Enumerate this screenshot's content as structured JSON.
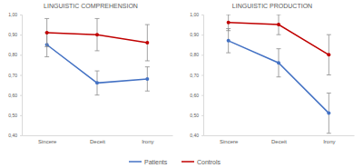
{
  "chart_data": [
    {
      "type": "line",
      "title": "LINGUISTIC COMPREHENSION",
      "categories": [
        "Sincere",
        "Deceit",
        "Irony"
      ],
      "series": [
        {
          "name": "Patients",
          "color": "#4472c4",
          "marker": "circle",
          "values": [
            0.85,
            0.66,
            0.68
          ],
          "errors": [
            0.06,
            0.06,
            0.06
          ]
        },
        {
          "name": "Controls",
          "color": "#c00000",
          "marker": "circle",
          "values": [
            0.91,
            0.9,
            0.86
          ],
          "errors": [
            0.07,
            0.08,
            0.09
          ]
        }
      ],
      "ylim": [
        0.4,
        1.0
      ],
      "yticks": [
        {
          "value": 0.4,
          "label": "0,40"
        },
        {
          "value": 0.5,
          "label": "0,50"
        },
        {
          "value": 0.6,
          "label": "0,60"
        },
        {
          "value": 0.7,
          "label": "0,70"
        },
        {
          "value": 0.8,
          "label": "0,80"
        },
        {
          "value": 0.9,
          "label": "0,90"
        },
        {
          "value": 1.0,
          "label": "1,00"
        }
      ],
      "grid": false,
      "legend": "bottom"
    },
    {
      "type": "line",
      "title": "LINGUISTIC PRODUCTION",
      "categories": [
        "Sincere",
        "Deceit",
        "Irony"
      ],
      "series": [
        {
          "name": "Patients",
          "color": "#4472c4",
          "marker": "circle",
          "values": [
            0.87,
            0.76,
            0.51
          ],
          "errors": [
            0.06,
            0.07,
            0.1
          ]
        },
        {
          "name": "Controls",
          "color": "#c00000",
          "marker": "circle",
          "values": [
            0.96,
            0.95,
            0.8
          ],
          "errors": [
            0.04,
            0.05,
            0.1
          ]
        }
      ],
      "ylim": [
        0.4,
        1.0
      ],
      "yticks": [
        {
          "value": 0.4,
          "label": "0,40"
        },
        {
          "value": 0.5,
          "label": "0,50"
        },
        {
          "value": 0.6,
          "label": "0,60"
        },
        {
          "value": 0.7,
          "label": "0,70"
        },
        {
          "value": 0.8,
          "label": "0,80"
        },
        {
          "value": 0.9,
          "label": "0,90"
        },
        {
          "value": 1.0,
          "label": "1,00"
        }
      ],
      "grid": false
    }
  ]
}
